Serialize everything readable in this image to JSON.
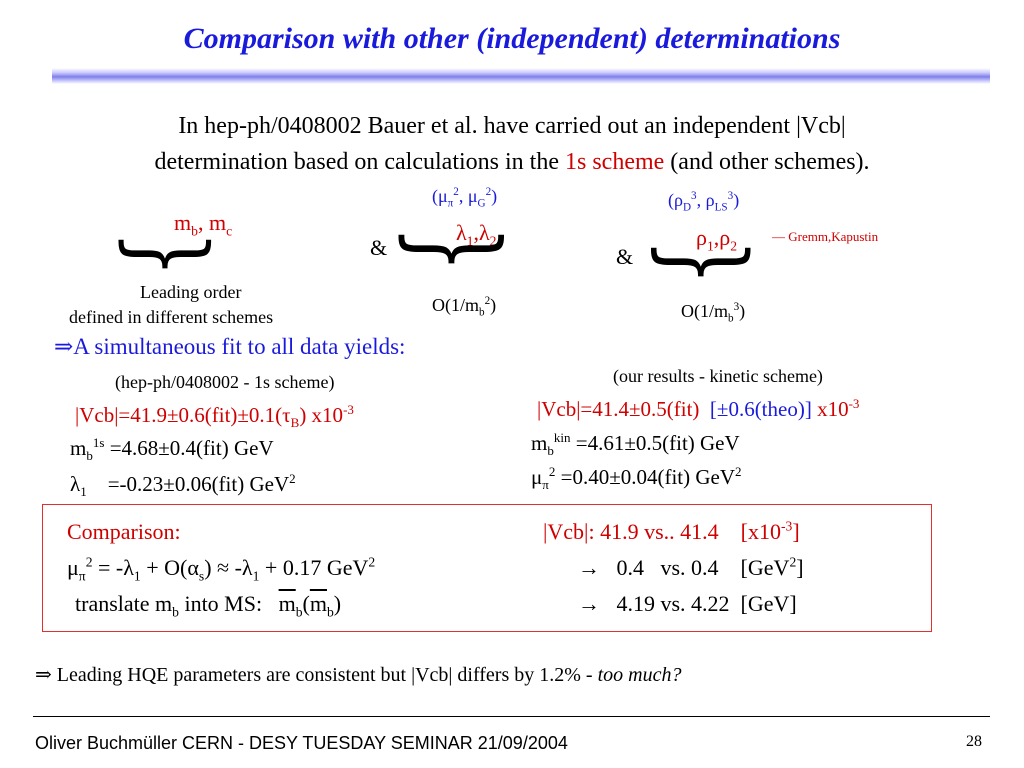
{
  "title": "Comparison with other (independent) determinations",
  "intro": {
    "line1": "In hep-ph/0408002 Bauer et al. have carried out an independent |Vcb|",
    "line2_a": "determination based on calculations in the ",
    "line2_red": "1s scheme",
    "line2_b": " (and other schemes)."
  },
  "group1": {
    "params_html": "m<sub>b</sub>, m<sub>c</sub>",
    "label1": "Leading order",
    "label2": "defined in different schemes"
  },
  "amp1": "&",
  "group2": {
    "top_html": "(&mu;<sub>&pi;</sub><sup>2</sup>, &mu;<sub>G</sub><sup>2</sup>)",
    "params_html": "&lambda;<sub>1</sub>,&lambda;<sub>2</sub>",
    "order_html": "O(1/m<sub>b</sub><sup>2</sup>)"
  },
  "amp2": "&",
  "group3": {
    "top_html": "(&rho;<sub>D</sub><sup>3</sup>, &rho;<sub>LS</sub><sup>3</sup>)",
    "params_html": "&rho;<sub>1</sub>,&rho;<sub>2</sub>",
    "note": "— Gremm,Kapustin",
    "order_html": "O(1/m<sub>b</sub><sup>3</sup>)"
  },
  "fit_heading_html": "&rArr;A simultaneous fit to all data yields:",
  "left_results": {
    "header": "(hep-ph/0408002 - 1s scheme)",
    "vcb_html": "|Vcb|=41.9&plusmn;0.6(fit)&plusmn;0.1(&tau;<sub>B</sub>) x10<sup>-3</sup>",
    "mb_html": "m<sub>b</sub><sup>1s</sup> =4.68&plusmn;0.4(fit) GeV",
    "lambda_html": "&lambda;<sub>1</sub> &nbsp;&nbsp; =-0.23&plusmn;0.06(fit) GeV<sup>2</sup>"
  },
  "right_results": {
    "header": "(our results - kinetic scheme)",
    "vcb_red_html": "|Vcb|=41.4&plusmn;0.5(fit) &nbsp;",
    "vcb_blue_html": "[&plusmn;0.6(theo)]",
    "vcb_red2_html": " x10<sup>-3</sup>",
    "mb_html": "m<sub>b</sub><sup>kin</sup> =4.61&plusmn;0.5(fit) GeV",
    "mu_html": "&mu;<sub>&pi;</sub><sup>2</sup> =0.40&plusmn;0.04(fit) GeV<sup>2</sup>"
  },
  "comparison": {
    "heading": "Comparison:",
    "mu_relation_html": "&mu;<sub>&pi;</sub><sup>2</sup> = -&lambda;<sub>1</sub> + O(&alpha;<sub>s</sub>) &asymp; -&lambda;<sub>1</sub> + 0.17 GeV<sup>2</sup>",
    "translate_html": "translate m<sub>b</sub> into MS: &nbsp;&nbsp;<span class=\"overline\">m</span><sub>b</sub>(<span class=\"overline\">m</span><sub>b</sub>)",
    "vcb_cmp_html": "|Vcb|: 41.9 vs.. 41.4 &nbsp;&nbsp; [x10<sup>-3</sup>]",
    "gev2_cmp_html": "&rarr; &nbsp;&nbsp;0.4 &nbsp;&nbsp;vs. 0.4 &nbsp;&nbsp; [GeV<sup>2</sup>]",
    "gev_cmp_html": "&rarr; &nbsp;&nbsp;4.19 vs. 4.22 &nbsp;[GeV]"
  },
  "conclusion": {
    "main": "⇒ Leading HQE parameters are consistent but |Vcb| differs by 1.2% - ",
    "italic": "too much?"
  },
  "footer": {
    "author": "Oliver Buchmüller CERN - DESY TUESDAY SEMINAR 21/09/2004",
    "page": "28"
  },
  "colors": {
    "title": "#1a1adc",
    "accent_red": "#d00000",
    "box_border": "#e03030"
  }
}
